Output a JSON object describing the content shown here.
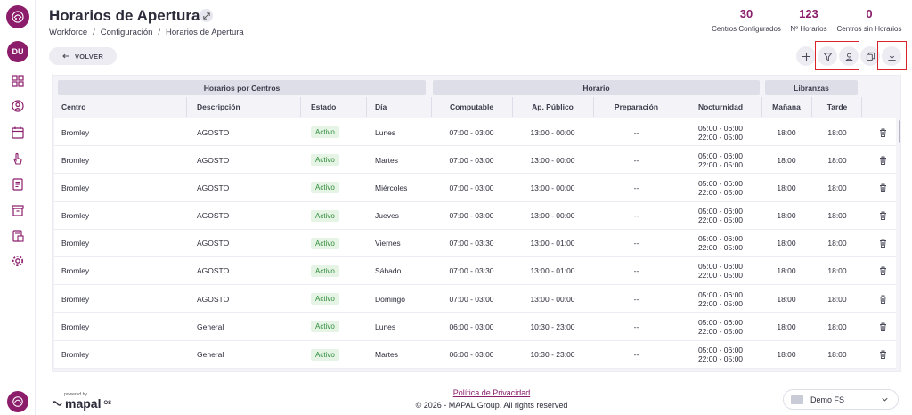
{
  "header": {
    "title": "Horarios de Apertura",
    "breadcrumb": [
      "Workforce",
      "Configuración",
      "Horarios de Apertura"
    ],
    "back_label": "VOLVER"
  },
  "user": {
    "initials": "DU"
  },
  "stats": [
    {
      "value": "30",
      "label": "Centros Configurados"
    },
    {
      "value": "123",
      "label": "Nº Horarios"
    },
    {
      "value": "0",
      "label": "Centros sin Horarios"
    }
  ],
  "toolbar": {
    "icons": [
      "plus-icon",
      "filter-icon",
      "user-filter-icon",
      "copy-icon",
      "download-icon"
    ]
  },
  "table": {
    "groups": [
      "Horarios por Centros",
      "Horario",
      "Libranzas"
    ],
    "columns": [
      "Centro",
      "Descripción",
      "Estado",
      "Día",
      "Computable",
      "Ap. Público",
      "Preparación",
      "Nocturnidad",
      "Mañana",
      "Tarde"
    ],
    "rows": [
      {
        "centro": "Bromley",
        "descripcion": "AGOSTO",
        "estado": "Activo",
        "dia": "Lunes",
        "computable": "07:00 - 03:00",
        "publico": "13:00 - 00:00",
        "preparacion": "--",
        "noct1": "05:00 - 06:00",
        "noct2": "22:00 - 05:00",
        "manana": "18:00",
        "tarde": "18:00"
      },
      {
        "centro": "Bromley",
        "descripcion": "AGOSTO",
        "estado": "Activo",
        "dia": "Martes",
        "computable": "07:00 - 03:00",
        "publico": "13:00 - 00:00",
        "preparacion": "--",
        "noct1": "05:00 - 06:00",
        "noct2": "22:00 - 05:00",
        "manana": "18:00",
        "tarde": "18:00"
      },
      {
        "centro": "Bromley",
        "descripcion": "AGOSTO",
        "estado": "Activo",
        "dia": "Miércoles",
        "computable": "07:00 - 03:00",
        "publico": "13:00 - 00:00",
        "preparacion": "--",
        "noct1": "05:00 - 06:00",
        "noct2": "22:00 - 05:00",
        "manana": "18:00",
        "tarde": "18:00"
      },
      {
        "centro": "Bromley",
        "descripcion": "AGOSTO",
        "estado": "Activo",
        "dia": "Jueves",
        "computable": "07:00 - 03:00",
        "publico": "13:00 - 00:00",
        "preparacion": "--",
        "noct1": "05:00 - 06:00",
        "noct2": "22:00 - 05:00",
        "manana": "18:00",
        "tarde": "18:00"
      },
      {
        "centro": "Bromley",
        "descripcion": "AGOSTO",
        "estado": "Activo",
        "dia": "Viernes",
        "computable": "07:00 - 03:30",
        "publico": "13:00 - 01:00",
        "preparacion": "--",
        "noct1": "05:00 - 06:00",
        "noct2": "22:00 - 05:00",
        "manana": "18:00",
        "tarde": "18:00"
      },
      {
        "centro": "Bromley",
        "descripcion": "AGOSTO",
        "estado": "Activo",
        "dia": "Sábado",
        "computable": "07:00 - 03:30",
        "publico": "13:00 - 01:00",
        "preparacion": "--",
        "noct1": "05:00 - 06:00",
        "noct2": "22:00 - 05:00",
        "manana": "18:00",
        "tarde": "18:00"
      },
      {
        "centro": "Bromley",
        "descripcion": "AGOSTO",
        "estado": "Activo",
        "dia": "Domingo",
        "computable": "07:00 - 03:00",
        "publico": "13:00 - 00:00",
        "preparacion": "--",
        "noct1": "05:00 - 06:00",
        "noct2": "22:00 - 05:00",
        "manana": "18:00",
        "tarde": "18:00"
      },
      {
        "centro": "Bromley",
        "descripcion": "General",
        "estado": "Activo",
        "dia": "Lunes",
        "computable": "06:00 - 03:00",
        "publico": "10:30 - 23:00",
        "preparacion": "--",
        "noct1": "05:00 - 06:00",
        "noct2": "22:00 - 05:00",
        "manana": "18:00",
        "tarde": "18:00"
      },
      {
        "centro": "Bromley",
        "descripcion": "General",
        "estado": "Activo",
        "dia": "Martes",
        "computable": "06:00 - 03:00",
        "publico": "10:30 - 23:00",
        "preparacion": "--",
        "noct1": "05:00 - 06:00",
        "noct2": "22:00 - 05:00",
        "manana": "18:00",
        "tarde": "18:00"
      }
    ]
  },
  "footer": {
    "powered_by": "powered by",
    "brand": "mapal",
    "brand_suffix": "OS",
    "privacy": "Política de Privacidad",
    "copyright": "© 2026 - MAPAL Group. All rights reserved",
    "company": "Demo FS"
  },
  "colors": {
    "brand": "#8b1d6b",
    "active_badge": "#2e8b3a",
    "highlight_box": "#d9252a"
  }
}
